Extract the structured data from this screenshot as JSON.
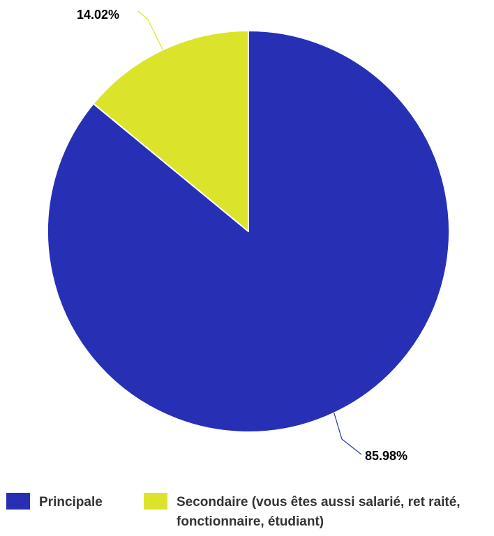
{
  "chart_data": {
    "type": "pie",
    "title": "",
    "series": [
      {
        "name": "Principale",
        "value": 85.98,
        "label": "85.98%",
        "color": "#2730b5"
      },
      {
        "name": "Secondaire (vous êtes aussi salarié, ret raité, fonctionnaire, étudiant)",
        "value": 14.02,
        "label": "14.02%",
        "color": "#dce32b"
      }
    ],
    "legend_position": "bottom",
    "start_angle_deg": 0,
    "direction": "clockwise"
  }
}
